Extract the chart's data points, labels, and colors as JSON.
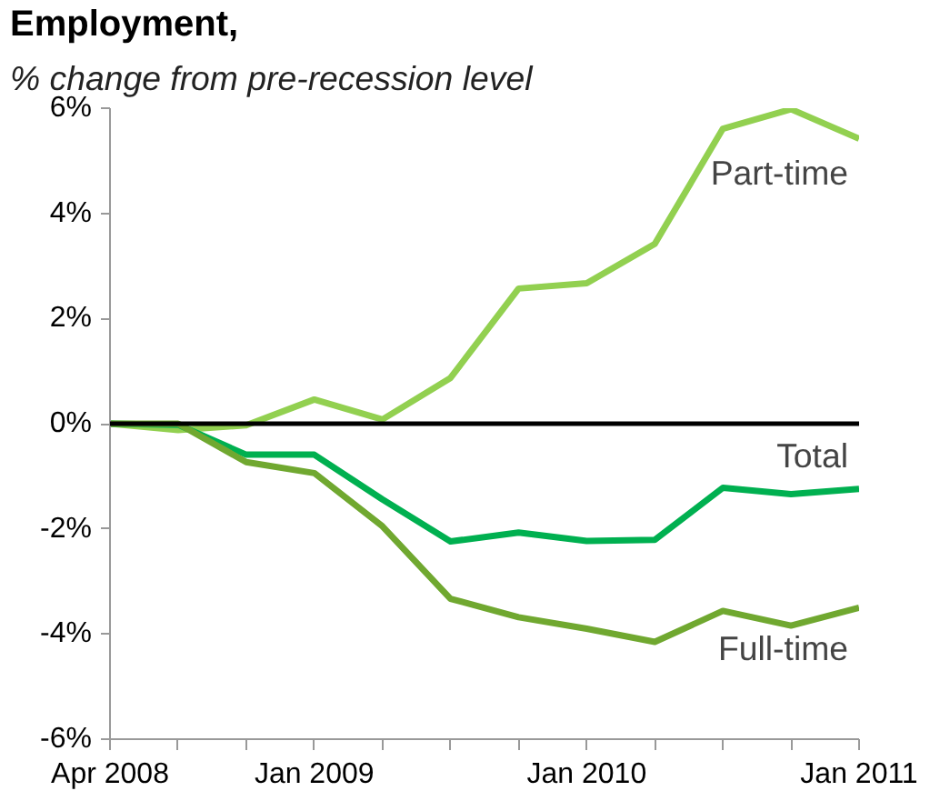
{
  "chart_data": {
    "type": "line",
    "title": "Employment,",
    "subtitle": "% change from pre-recession level",
    "categories": [
      "Apr 2008",
      null,
      null,
      "Jan 2009",
      null,
      null,
      null,
      "Jan 2010",
      null,
      null,
      null,
      "Jan 2011"
    ],
    "series": [
      {
        "name": "Part-time",
        "color": "#92d050",
        "values": [
          0,
          -0.12,
          -0.03,
          0.46,
          0.08,
          0.87,
          2.57,
          2.67,
          3.42,
          5.61,
          5.98,
          5.42
        ]
      },
      {
        "name": "Total",
        "color": "#00b050",
        "values": [
          0,
          -0.02,
          -0.59,
          -0.59,
          -1.44,
          -2.24,
          -2.07,
          -2.23,
          -2.21,
          -1.22,
          -1.34,
          -1.24
        ]
      },
      {
        "name": "Full-time",
        "color": "#70a830",
        "values": [
          0,
          0,
          -0.73,
          -0.94,
          -1.95,
          -3.33,
          -3.68,
          -3.9,
          -4.15,
          -3.56,
          -3.84,
          -3.5
        ]
      }
    ],
    "ylim": [
      -6,
      6
    ],
    "yticks": [
      {
        "value": -6,
        "label": "-6%"
      },
      {
        "value": -4,
        "label": "-4%"
      },
      {
        "value": -2,
        "label": "-2%"
      },
      {
        "value": 0,
        "label": "0%"
      },
      {
        "value": 2,
        "label": "2%"
      },
      {
        "value": 4,
        "label": "4%"
      },
      {
        "value": 6,
        "label": "6%"
      }
    ],
    "ref_lines": [
      {
        "axis": "y",
        "value": 0,
        "color": "#000000"
      }
    ],
    "grid": false,
    "legend": false,
    "marker": "none",
    "line_style": "solid"
  }
}
